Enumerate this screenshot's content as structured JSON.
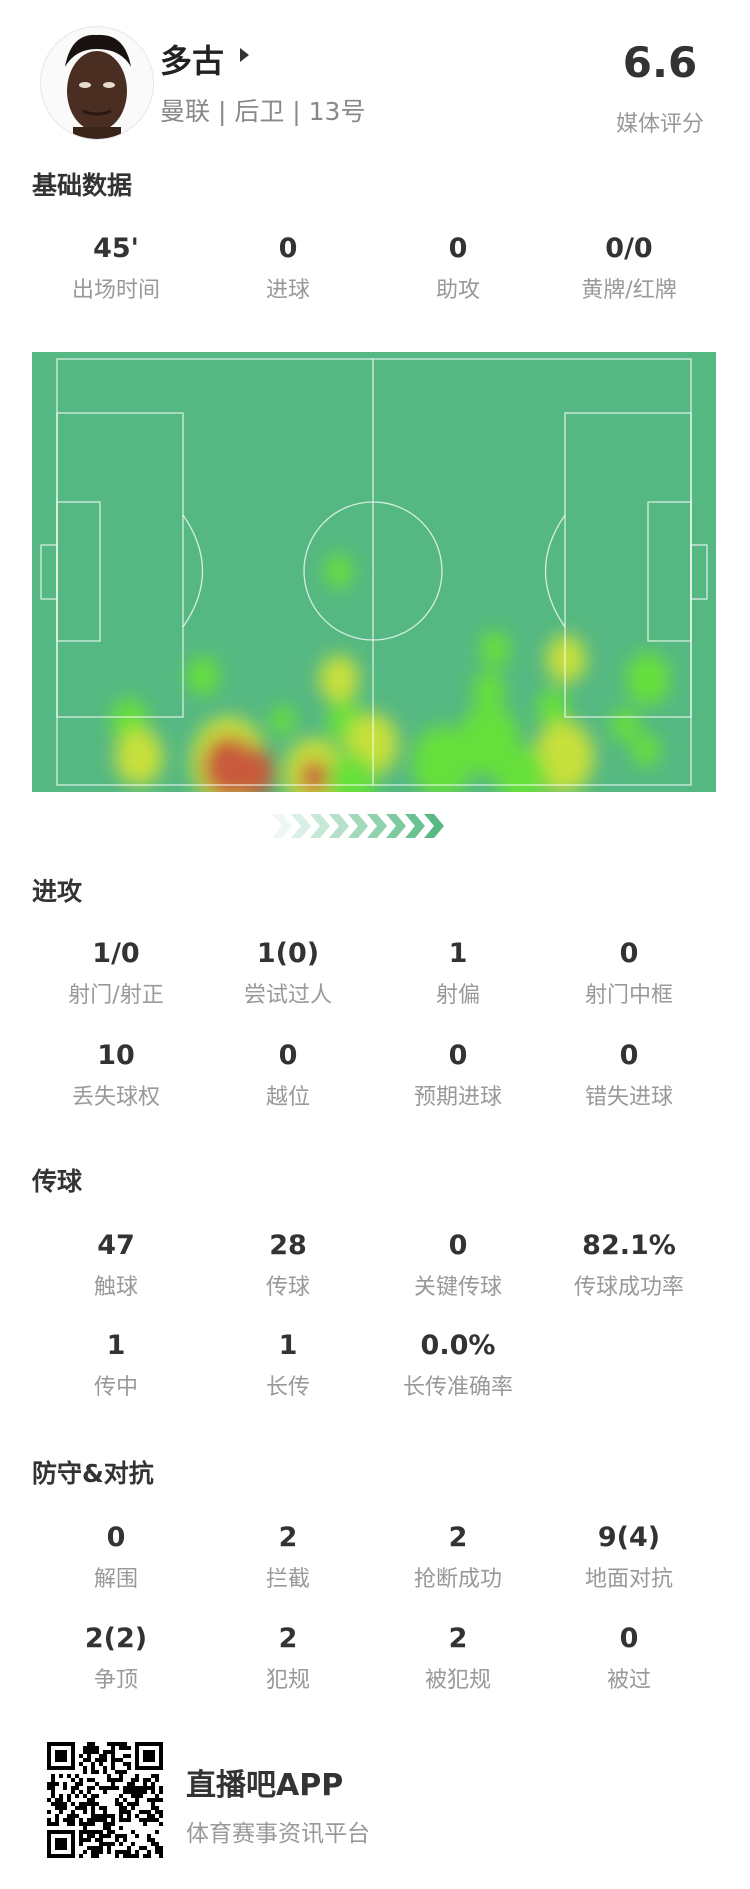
{
  "player": {
    "name": "多古",
    "subtitle": "曼联 | 后卫 | 13号",
    "rating": "6.6",
    "rating_label": "媒体评分"
  },
  "basic": {
    "title": "基础数据",
    "stats": [
      {
        "value": "45'",
        "label": "出场时间"
      },
      {
        "value": "0",
        "label": "进球"
      },
      {
        "value": "0",
        "label": "助攻"
      },
      {
        "value": "0/0",
        "label": "黄牌/红牌"
      }
    ]
  },
  "heatmap": {
    "pitch_color": "#55b882",
    "attack_direction": "right"
  },
  "attack": {
    "title": "进攻",
    "stats": [
      {
        "value": "1/0",
        "label": "射门/射正"
      },
      {
        "value": "1(0)",
        "label": "尝试过人"
      },
      {
        "value": "1",
        "label": "射偏"
      },
      {
        "value": "0",
        "label": "射门中框"
      },
      {
        "value": "10",
        "label": "丢失球权"
      },
      {
        "value": "0",
        "label": "越位"
      },
      {
        "value": "0",
        "label": "预期进球"
      },
      {
        "value": "0",
        "label": "错失进球"
      }
    ]
  },
  "passing": {
    "title": "传球",
    "stats": [
      {
        "value": "47",
        "label": "触球"
      },
      {
        "value": "28",
        "label": "传球"
      },
      {
        "value": "0",
        "label": "关键传球"
      },
      {
        "value": "82.1%",
        "label": "传球成功率"
      },
      {
        "value": "1",
        "label": "传中"
      },
      {
        "value": "1",
        "label": "长传"
      },
      {
        "value": "0.0%",
        "label": "长传准确率"
      }
    ]
  },
  "defense": {
    "title": "防守&对抗",
    "stats": [
      {
        "value": "0",
        "label": "解围"
      },
      {
        "value": "2",
        "label": "拦截"
      },
      {
        "value": "2",
        "label": "抢断成功"
      },
      {
        "value": "9(4)",
        "label": "地面对抗"
      },
      {
        "value": "2(2)",
        "label": "争顶"
      },
      {
        "value": "2",
        "label": "犯规"
      },
      {
        "value": "2",
        "label": "被犯规"
      },
      {
        "value": "0",
        "label": "被过"
      }
    ]
  },
  "footer": {
    "app_name": "直播吧APP",
    "tagline": "体育赛事资讯平台"
  }
}
